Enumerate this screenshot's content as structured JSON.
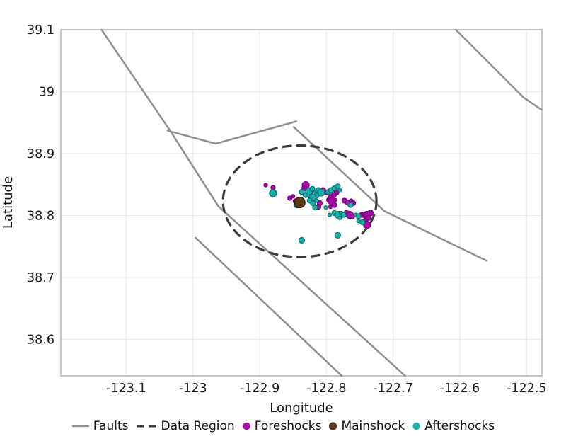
{
  "chart_data": {
    "type": "scatter",
    "xlabel": "Longitude",
    "ylabel": "Latitude",
    "xlim": [
      -123.198,
      -122.477
    ],
    "ylim": [
      38.541,
      39.1
    ],
    "grid": true,
    "legend_position": "bottom",
    "xticks": {
      "values": [
        -123.1,
        -123.0,
        -122.9,
        -122.8,
        -122.7,
        -122.6,
        -122.5
      ],
      "labels": [
        "-123.1",
        "-123",
        "-122.9",
        "-122.8",
        "-122.7",
        "-122.6",
        "-122.5"
      ]
    },
    "yticks": {
      "values": [
        39.1,
        39.0,
        38.9,
        38.8,
        38.7,
        38.6
      ],
      "labels": [
        "39.1",
        "39",
        "38.9",
        "38.8",
        "38.7",
        "38.6"
      ]
    },
    "colors": {
      "fault": "#8f8f8f",
      "data_region": "#3b3b3b",
      "foreshock": "#b006b0",
      "foreshock_stroke": "#6f026f",
      "mainshock": "#5c3a13",
      "mainshock_stroke": "#201005",
      "aftershock": "#17b2ae",
      "aftershock_stroke": "#0a6f6c",
      "grid": "#ebebeb",
      "border": "#b3b3b3",
      "text": "#1a1a1a"
    },
    "faults": [
      [
        [
          -123.137,
          39.1
        ],
        [
          -123.033,
          38.935
        ],
        [
          -122.962,
          38.815
        ],
        [
          -122.682,
          38.541
        ]
      ],
      [
        [
          -123.038,
          38.937
        ],
        [
          -122.966,
          38.916
        ],
        [
          -122.845,
          38.952
        ]
      ],
      [
        [
          -122.849,
          38.943
        ],
        [
          -122.713,
          38.807
        ],
        [
          -122.56,
          38.727
        ]
      ],
      [
        [
          -122.606,
          39.1
        ],
        [
          -122.505,
          38.991
        ],
        [
          -122.478,
          38.971
        ]
      ],
      [
        [
          -122.996,
          38.764
        ],
        [
          -122.777,
          38.541
        ]
      ]
    ],
    "data_region": {
      "center": [
        -122.84,
        38.823
      ],
      "rx": 0.115,
      "ry": 0.09
    },
    "series": [
      {
        "name": "Foreshocks",
        "marker": "circle",
        "points": [
          [
            -122.891,
            38.849,
            2.5
          ],
          [
            -122.88,
            38.845,
            3
          ],
          [
            -122.855,
            38.828,
            3
          ],
          [
            -122.85,
            38.831,
            2.5
          ],
          [
            -122.846,
            38.823,
            3.5
          ],
          [
            -122.831,
            38.849,
            5
          ],
          [
            -122.833,
            38.844,
            3.5
          ],
          [
            -122.805,
            38.841,
            3.5
          ],
          [
            -122.81,
            38.82,
            3.5
          ],
          [
            -122.812,
            38.814,
            3.5
          ],
          [
            -122.801,
            38.836,
            2.5
          ],
          [
            -122.785,
            38.837,
            3.5
          ],
          [
            -122.789,
            38.833,
            3.5
          ],
          [
            -122.794,
            38.831,
            2.5
          ],
          [
            -122.796,
            38.825,
            3.5
          ],
          [
            -122.792,
            38.823,
            5
          ],
          [
            -122.787,
            38.825,
            2.5
          ],
          [
            -122.794,
            38.814,
            2.5
          ],
          [
            -122.788,
            38.817,
            3.5
          ],
          [
            -122.77,
            38.804,
            3.5
          ],
          [
            -122.765,
            38.801,
            5
          ],
          [
            -122.761,
            38.799,
            3.5
          ],
          [
            -122.773,
            38.824,
            3.5
          ],
          [
            -122.768,
            38.821,
            3.5
          ],
          [
            -122.763,
            38.824,
            2.5
          ],
          [
            -122.76,
            38.82,
            3.5
          ],
          [
            -122.747,
            38.801,
            3.5
          ],
          [
            -122.743,
            38.799,
            2.5
          ],
          [
            -122.739,
            38.801,
            5
          ],
          [
            -122.737,
            38.796,
            3.5
          ],
          [
            -122.742,
            38.791,
            3.5
          ],
          [
            -122.739,
            38.785,
            5
          ],
          [
            -122.734,
            38.804,
            4
          ]
        ]
      },
      {
        "name": "Mainshock",
        "marker": "circle",
        "points": [
          [
            -122.84,
            38.821,
            7.5
          ]
        ]
      },
      {
        "name": "Aftershocks",
        "marker": "circle",
        "points": [
          [
            -122.88,
            38.836,
            5
          ],
          [
            -122.844,
            38.817,
            4
          ],
          [
            -122.837,
            38.838,
            3.5
          ],
          [
            -122.831,
            38.833,
            3.5
          ],
          [
            -122.826,
            38.839,
            5
          ],
          [
            -122.821,
            38.843,
            3.5
          ],
          [
            -122.816,
            38.838,
            2.5
          ],
          [
            -122.812,
            38.841,
            3.5
          ],
          [
            -122.808,
            38.837,
            5
          ],
          [
            -122.815,
            38.832,
            3.5
          ],
          [
            -122.821,
            38.829,
            5
          ],
          [
            -122.825,
            38.824,
            3.5
          ],
          [
            -122.82,
            38.82,
            3.5
          ],
          [
            -122.815,
            38.824,
            2.5
          ],
          [
            -122.817,
            38.813,
            3.5
          ],
          [
            -122.797,
            38.838,
            3.5
          ],
          [
            -122.793,
            38.841,
            3.5
          ],
          [
            -122.788,
            38.844,
            3.5
          ],
          [
            -122.783,
            38.847,
            3.5
          ],
          [
            -122.78,
            38.841,
            2.5
          ],
          [
            -122.795,
            38.801,
            2.5
          ],
          [
            -122.788,
            38.804,
            3.5
          ],
          [
            -122.782,
            38.801,
            5
          ],
          [
            -122.778,
            38.804,
            2.5
          ],
          [
            -122.774,
            38.801,
            3.5
          ],
          [
            -122.756,
            38.801,
            2.5
          ],
          [
            -122.752,
            38.799,
            3.5
          ],
          [
            -122.764,
            38.817,
            3.5
          ],
          [
            -122.746,
            38.789,
            3.5
          ],
          [
            -122.752,
            38.791,
            2.5
          ],
          [
            -122.801,
            38.813,
            2.5
          ],
          [
            -122.78,
            38.796,
            2.5
          ],
          [
            -122.837,
            38.76,
            4
          ],
          [
            -122.783,
            38.768,
            4
          ]
        ]
      }
    ],
    "legend": [
      {
        "label": "Faults",
        "type": "line",
        "color": "#8f8f8f"
      },
      {
        "label": "Data Region",
        "type": "dash",
        "color": "#3b3b3b"
      },
      {
        "label": "Foreshocks",
        "type": "dot",
        "color": "#b006b0"
      },
      {
        "label": "Mainshock",
        "type": "dot",
        "color": "#5c3317"
      },
      {
        "label": "Aftershocks",
        "type": "dot",
        "color": "#17b2ae"
      }
    ]
  }
}
